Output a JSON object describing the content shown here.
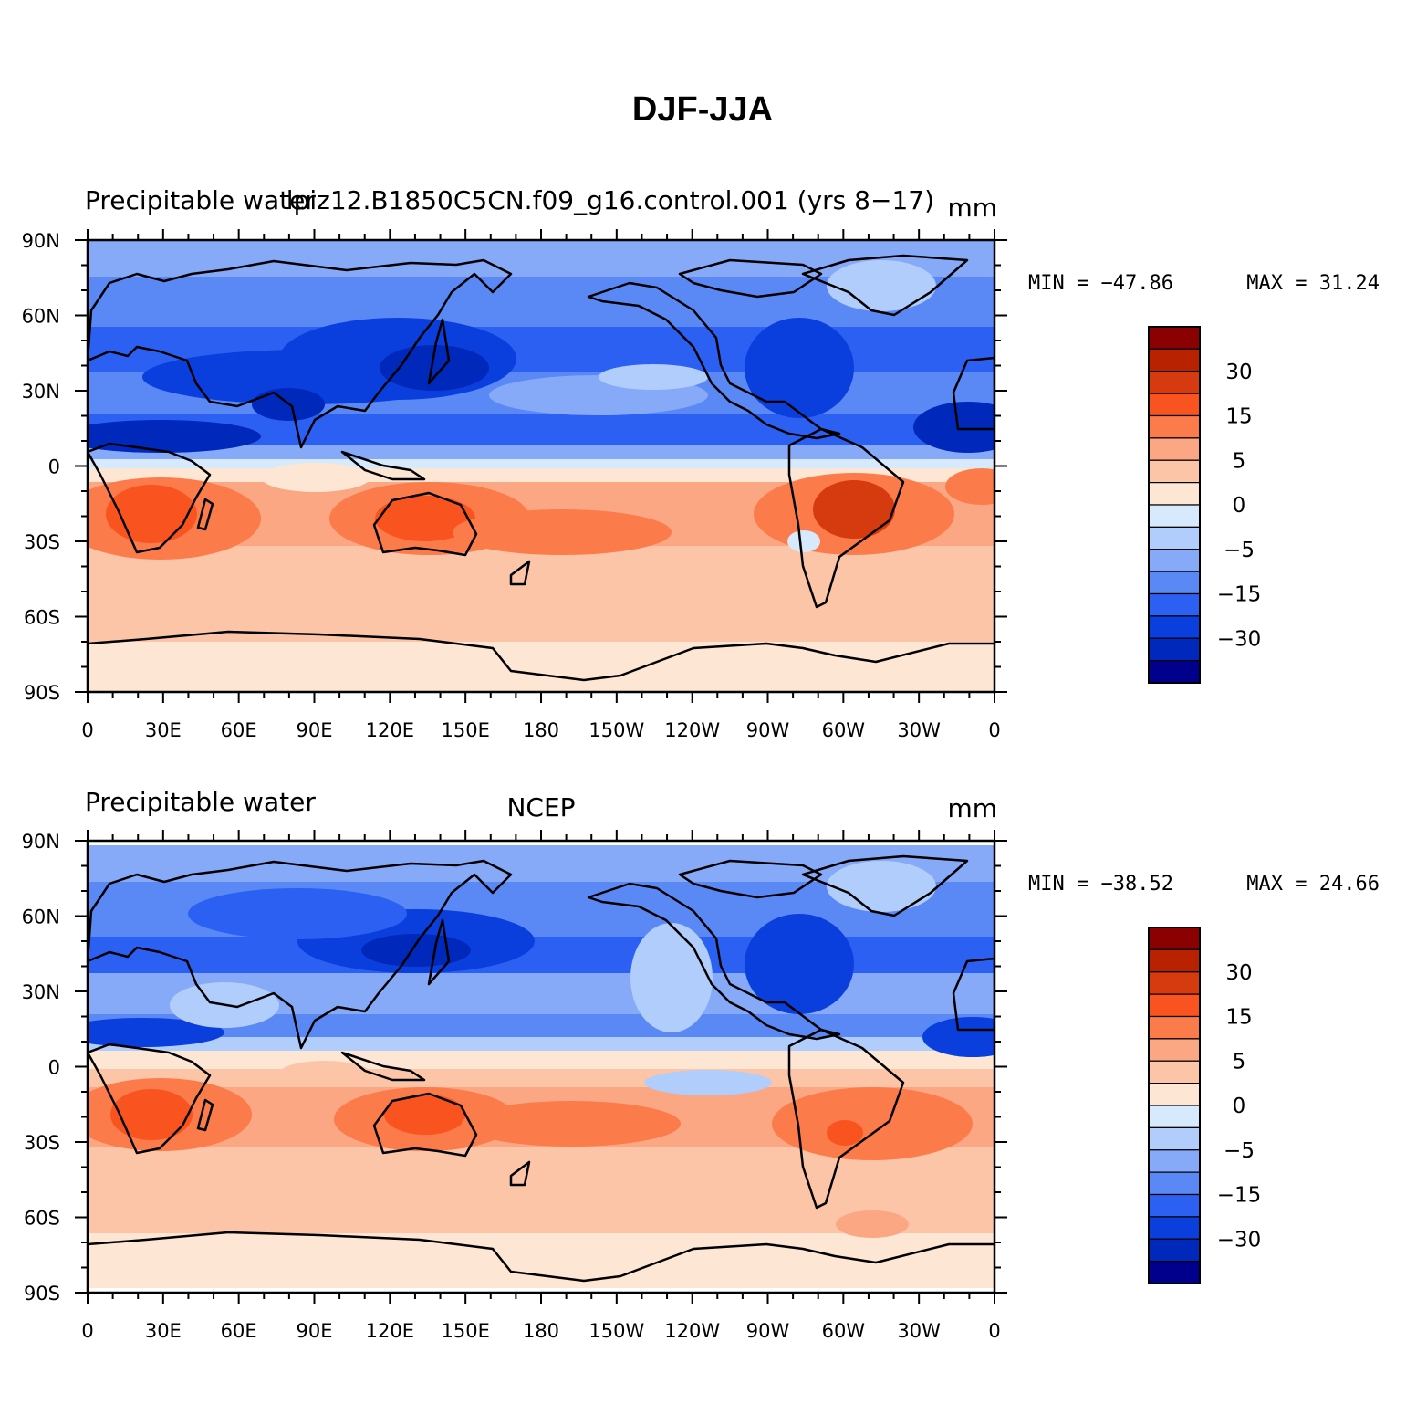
{
  "title": "DJF-JJA",
  "longitude_labels": [
    "0",
    "30E",
    "60E",
    "90E",
    "120E",
    "150E",
    "180",
    "150W",
    "120W",
    "90W",
    "60W",
    "30W",
    "0"
  ],
  "latitude_labels": [
    "90N",
    "60N",
    "30N",
    "0",
    "30S",
    "60S",
    "90S"
  ],
  "colorbar": {
    "labels": [
      "30",
      "15",
      "5",
      "0",
      "-5",
      "-15",
      "-30"
    ],
    "colors": [
      "#8b0000",
      "#b82200",
      "#d63b10",
      "#f9541f",
      "#fb7b4a",
      "#fca784",
      "#fcc5a8",
      "#fde6d4",
      "#d7e9fd",
      "#b1cdfb",
      "#86aaf8",
      "#5a89f5",
      "#2c60f2",
      "#0a3fdd",
      "#0028bb",
      "#00008d"
    ]
  },
  "panels": [
    {
      "variable": "Precipitable water",
      "case": "lpiz12.B1850C5CN.f09_g16.control.001 (yrs 8-17)",
      "units": "mm",
      "min_label": "MIN = -47.86",
      "max_label": "MAX =  31.24"
    },
    {
      "variable": "Precipitable water",
      "case": "NCEP",
      "units": "mm",
      "min_label": "MIN = -38.52",
      "max_label": "MAX =  24.66"
    }
  ]
}
